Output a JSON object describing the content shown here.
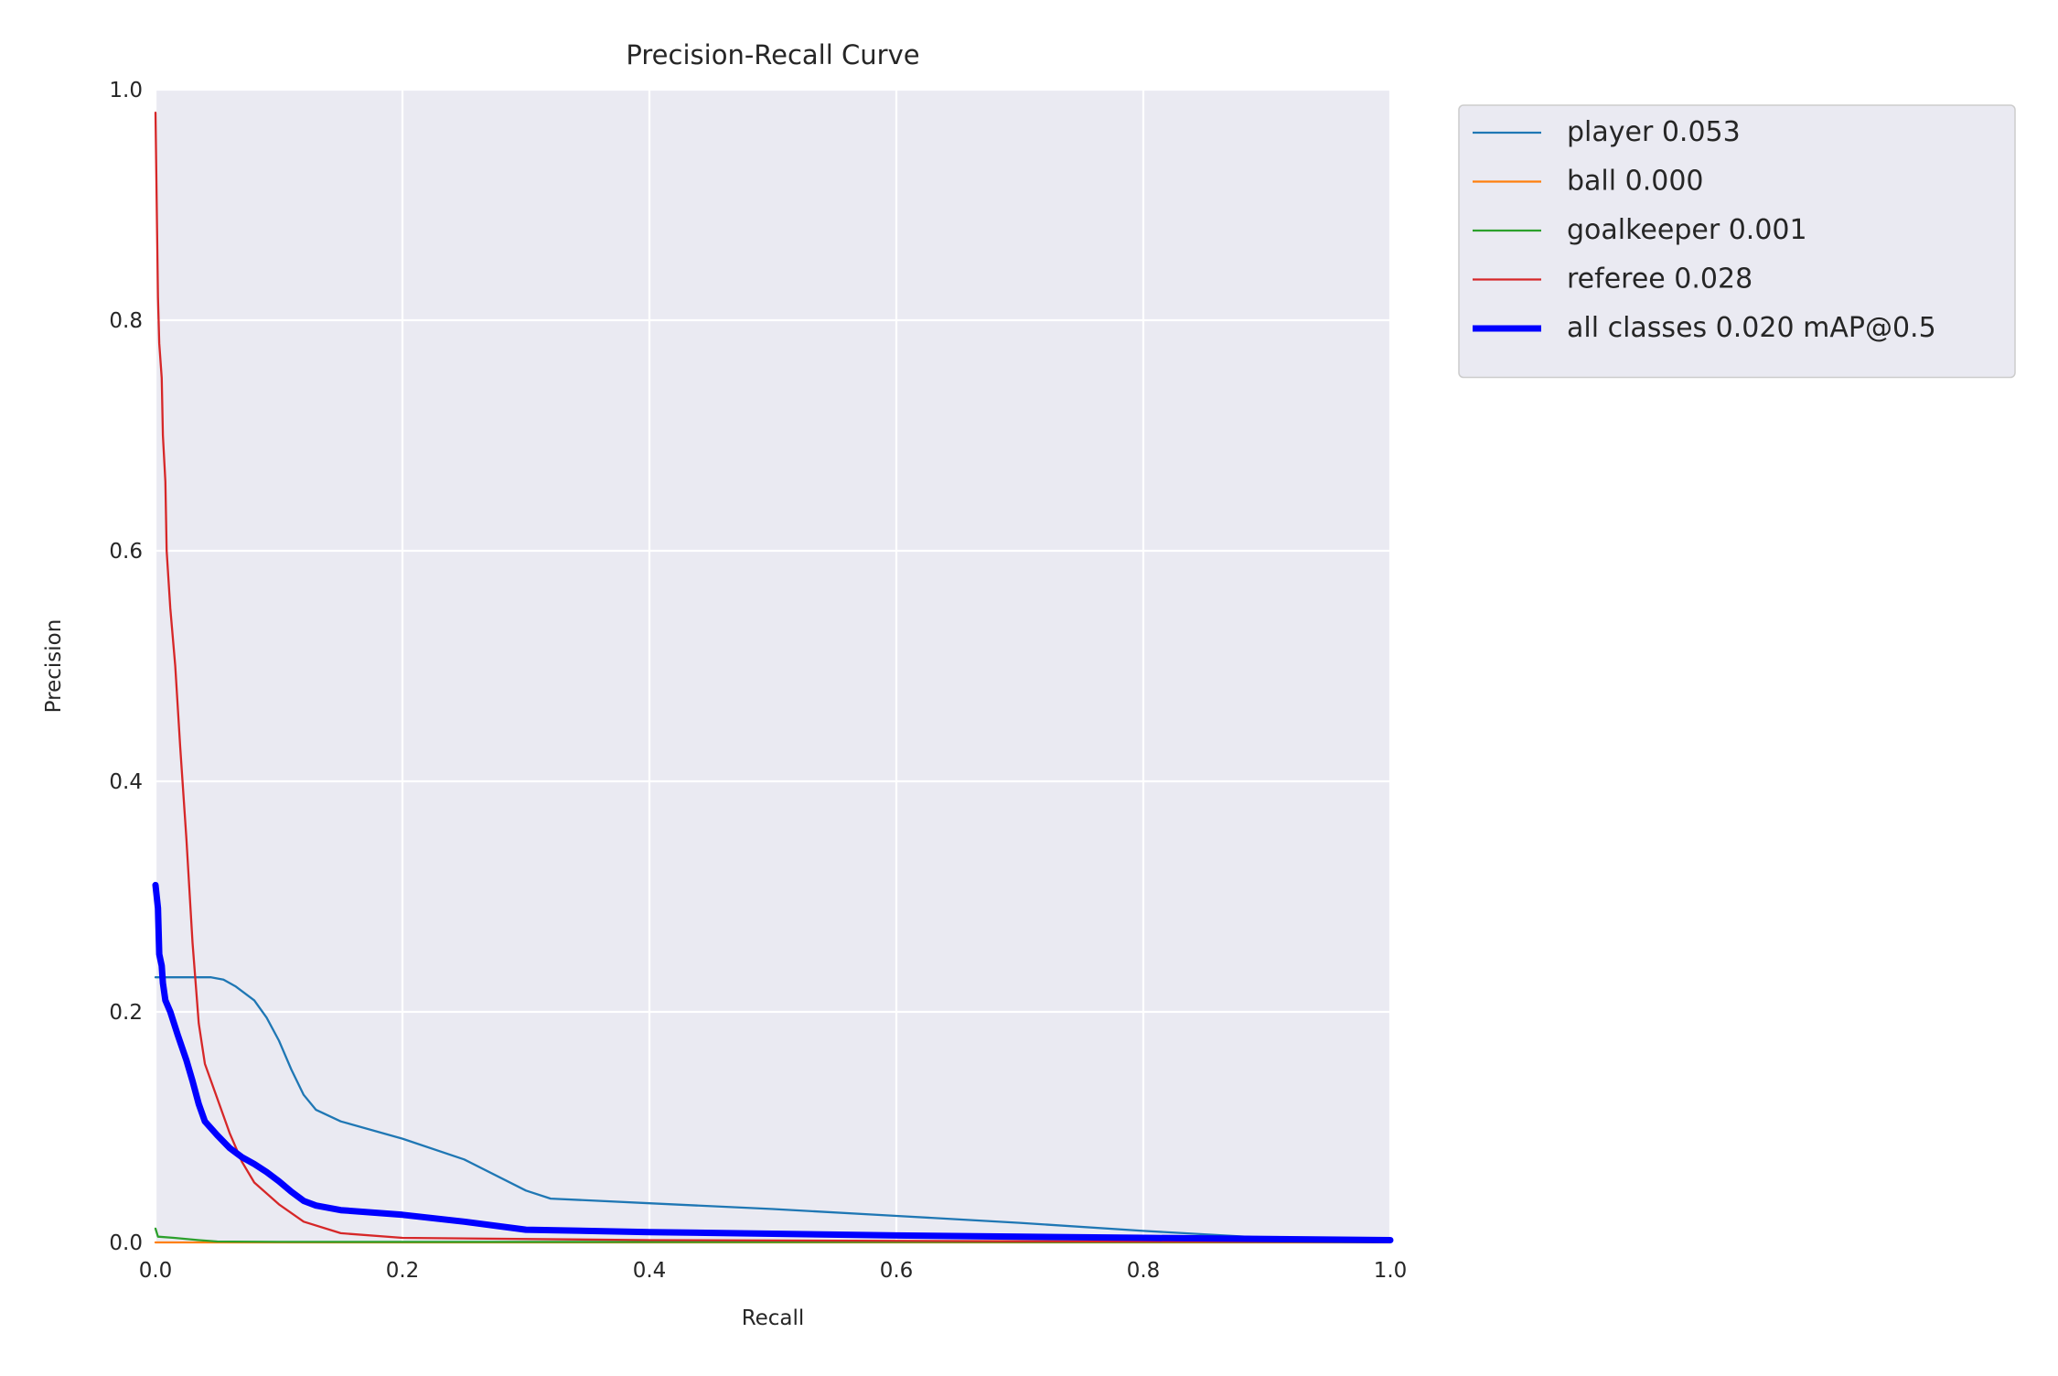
{
  "chart_data": {
    "type": "line",
    "title": "Precision-Recall Curve",
    "xlabel": "Recall",
    "ylabel": "Precision",
    "xlim": [
      0,
      1
    ],
    "ylim": [
      0,
      1
    ],
    "xticks": [
      "0.0",
      "0.2",
      "0.4",
      "0.6",
      "0.8",
      "1.0"
    ],
    "yticks": [
      "0.0",
      "0.2",
      "0.4",
      "0.6",
      "0.8",
      "1.0"
    ],
    "grid": true,
    "legend_position": "outside-right-top",
    "series": [
      {
        "name": "player 0.053",
        "color": "#1f77b4",
        "bold": false,
        "points": [
          [
            0,
            0.23
          ],
          [
            0.01,
            0.23
          ],
          [
            0.03,
            0.23
          ],
          [
            0.045,
            0.23
          ],
          [
            0.055,
            0.228
          ],
          [
            0.065,
            0.222
          ],
          [
            0.08,
            0.21
          ],
          [
            0.09,
            0.195
          ],
          [
            0.1,
            0.175
          ],
          [
            0.11,
            0.15
          ],
          [
            0.12,
            0.128
          ],
          [
            0.13,
            0.115
          ],
          [
            0.15,
            0.105
          ],
          [
            0.2,
            0.09
          ],
          [
            0.25,
            0.072
          ],
          [
            0.3,
            0.045
          ],
          [
            0.32,
            0.038
          ],
          [
            0.4,
            0.034
          ],
          [
            0.5,
            0.029
          ],
          [
            0.6,
            0.023
          ],
          [
            0.7,
            0.017
          ],
          [
            0.8,
            0.01
          ],
          [
            0.9,
            0.004
          ],
          [
            1.0,
            0.001
          ]
        ]
      },
      {
        "name": "ball 0.000",
        "color": "#ff7f0e",
        "bold": false,
        "points": [
          [
            0,
            0.0
          ],
          [
            1.0,
            0.0
          ]
        ]
      },
      {
        "name": "goalkeeper 0.001",
        "color": "#2ca02c",
        "bold": false,
        "points": [
          [
            0,
            0.012
          ],
          [
            0.002,
            0.005
          ],
          [
            0.015,
            0.004
          ],
          [
            0.035,
            0.002
          ],
          [
            0.05,
            0.0008
          ],
          [
            0.1,
            0.0005
          ],
          [
            1.0,
            0.0003
          ]
        ]
      },
      {
        "name": "referee 0.028",
        "color": "#d62728",
        "bold": false,
        "points": [
          [
            0,
            0.98
          ],
          [
            0.002,
            0.82
          ],
          [
            0.003,
            0.78
          ],
          [
            0.005,
            0.75
          ],
          [
            0.006,
            0.7
          ],
          [
            0.008,
            0.66
          ],
          [
            0.009,
            0.6
          ],
          [
            0.012,
            0.55
          ],
          [
            0.016,
            0.5
          ],
          [
            0.02,
            0.43
          ],
          [
            0.025,
            0.35
          ],
          [
            0.03,
            0.26
          ],
          [
            0.035,
            0.19
          ],
          [
            0.04,
            0.155
          ],
          [
            0.05,
            0.125
          ],
          [
            0.06,
            0.095
          ],
          [
            0.07,
            0.07
          ],
          [
            0.08,
            0.052
          ],
          [
            0.1,
            0.033
          ],
          [
            0.12,
            0.018
          ],
          [
            0.15,
            0.008
          ],
          [
            0.2,
            0.004
          ],
          [
            0.4,
            0.002
          ],
          [
            0.7,
            0.001
          ],
          [
            1.0,
            0.0005
          ]
        ]
      },
      {
        "name": "all classes 0.020 mAP@0.5",
        "color": "#0000ff",
        "bold": true,
        "points": [
          [
            0,
            0.31
          ],
          [
            0.002,
            0.29
          ],
          [
            0.003,
            0.25
          ],
          [
            0.005,
            0.24
          ],
          [
            0.006,
            0.225
          ],
          [
            0.008,
            0.21
          ],
          [
            0.012,
            0.2
          ],
          [
            0.018,
            0.18
          ],
          [
            0.025,
            0.158
          ],
          [
            0.03,
            0.14
          ],
          [
            0.035,
            0.12
          ],
          [
            0.04,
            0.105
          ],
          [
            0.05,
            0.093
          ],
          [
            0.06,
            0.082
          ],
          [
            0.07,
            0.074
          ],
          [
            0.08,
            0.068
          ],
          [
            0.09,
            0.061
          ],
          [
            0.1,
            0.053
          ],
          [
            0.11,
            0.044
          ],
          [
            0.12,
            0.036
          ],
          [
            0.13,
            0.032
          ],
          [
            0.15,
            0.028
          ],
          [
            0.2,
            0.024
          ],
          [
            0.25,
            0.018
          ],
          [
            0.3,
            0.011
          ],
          [
            0.4,
            0.009
          ],
          [
            0.6,
            0.006
          ],
          [
            0.8,
            0.004
          ],
          [
            1.0,
            0.002
          ]
        ]
      }
    ]
  }
}
